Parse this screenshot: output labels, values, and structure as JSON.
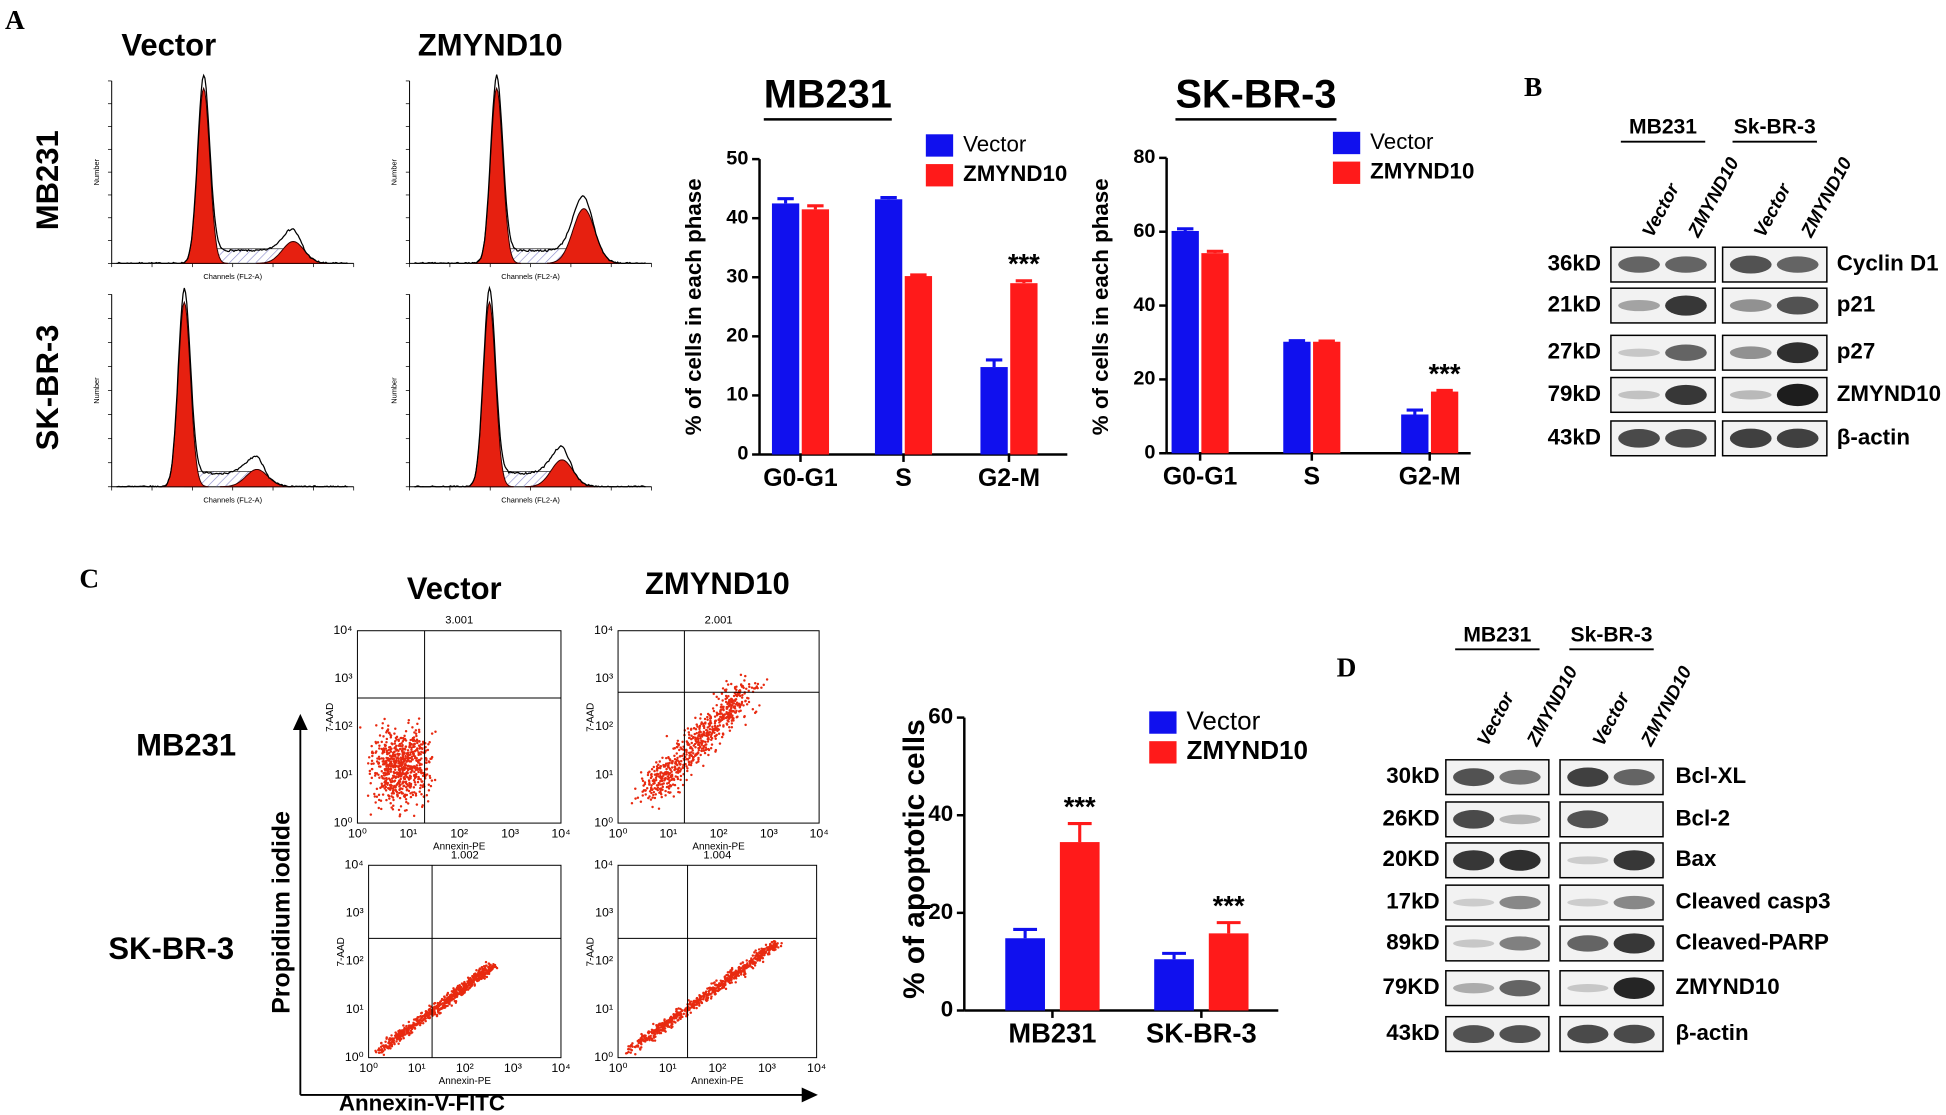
{
  "chart_data": [
    {
      "type": "bar",
      "title": "MB231",
      "y_label": "% of cells in each phase",
      "categories": [
        "G0-G1",
        "S",
        "G2-M"
      ],
      "series": [
        {
          "name": "Vector",
          "color": "#1010ee",
          "values": [
            42.5,
            43.2,
            14.8
          ],
          "errors": [
            0.8,
            0.3,
            1.2
          ]
        },
        {
          "name": "ZMYND10",
          "color": "#ff1a1a",
          "values": [
            41.5,
            30.2,
            29.0
          ],
          "errors": [
            0.6,
            0.2,
            0.4
          ]
        }
      ],
      "ylim": [
        0,
        50
      ],
      "yticks": [
        0,
        10,
        20,
        30,
        40,
        50
      ],
      "annotations": [
        {
          "text": "***",
          "category": "G2-M",
          "series": "ZMYND10"
        }
      ]
    },
    {
      "type": "bar",
      "title": "SK-BR-3",
      "y_label": "% of cells in each phase",
      "categories": [
        "G0-G1",
        "S",
        "G2-M"
      ],
      "series": [
        {
          "name": "Vector",
          "color": "#1010ee",
          "values": [
            60.2,
            30.2,
            10.5
          ],
          "errors": [
            0.6,
            0.3,
            1.2
          ]
        },
        {
          "name": "ZMYND10",
          "color": "#ff1a1a",
          "values": [
            54.2,
            30.2,
            16.7
          ],
          "errors": [
            0.5,
            0.2,
            0.3
          ]
        }
      ],
      "ylim": [
        0,
        80
      ],
      "yticks": [
        0,
        20,
        40,
        60,
        80
      ],
      "annotations": [
        {
          "text": "***",
          "category": "G2-M",
          "series": "ZMYND10"
        }
      ]
    },
    {
      "type": "bar",
      "y_label": "% of apoptotic cells",
      "categories": [
        "MB231",
        "SK-BR-3"
      ],
      "series": [
        {
          "name": "Vector",
          "color": "#1010ee",
          "values": [
            14.8,
            10.5
          ],
          "errors": [
            1.8,
            1.2
          ]
        },
        {
          "name": "ZMYND10",
          "color": "#ff1a1a",
          "values": [
            34.5,
            15.8
          ],
          "errors": [
            3.8,
            2.2
          ]
        }
      ],
      "ylim": [
        0,
        60
      ],
      "yticks": [
        0,
        20,
        40,
        60
      ],
      "annotations": [
        {
          "text": "***",
          "category": "MB231",
          "series": "ZMYND10"
        },
        {
          "text": "***",
          "category": "SK-BR-3",
          "series": "ZMYND10"
        }
      ]
    }
  ],
  "panel_a": {
    "label": "A",
    "columns": [
      "Vector",
      "ZMYND10"
    ],
    "rows": [
      "MB231",
      "SK-BR-3"
    ],
    "x_label": "Channels (FL2-A)",
    "y_label": "Number"
  },
  "panel_b": {
    "label": "B",
    "groups": [
      "MB231",
      "Sk-BR-3"
    ],
    "lanes": [
      "Vector",
      "ZMYND10",
      "Vector",
      "ZMYND10"
    ],
    "rows": [
      {
        "size": "36kD",
        "protein": "Cyclin D1"
      },
      {
        "size": "21kD",
        "protein": "p21"
      },
      {
        "size": "27kD",
        "protein": "p27"
      },
      {
        "size": "79kD",
        "protein": "ZMYND10"
      },
      {
        "size": "43kD",
        "protein": "β-actin"
      }
    ]
  },
  "panel_c": {
    "label": "C",
    "columns": [
      "Vector",
      "ZMYND10"
    ],
    "rows": [
      "MB231",
      "SK-BR-3"
    ],
    "plot_titles": [
      "3.001",
      "2.001",
      "1.002",
      "1.004"
    ],
    "x_label": "Annexin-PE",
    "y_label": "7-AAD",
    "ticks": [
      "10⁰",
      "10¹",
      "10²",
      "10³",
      "10⁴"
    ],
    "y_axis_title": "Propidium iodide",
    "x_axis_title": "Annexin-V-FITC"
  },
  "panel_d": {
    "label": "D",
    "groups": [
      "MB231",
      "Sk-BR-3"
    ],
    "lanes": [
      "Vector",
      "ZMYND10",
      "Vector",
      "ZMYND10"
    ],
    "rows": [
      {
        "size": "30kD",
        "protein": "Bcl-XL"
      },
      {
        "size": "26KD",
        "protein": "Bcl-2"
      },
      {
        "size": "20KD",
        "protein": "Bax"
      },
      {
        "size": "17kD",
        "protein": "Cleaved casp3"
      },
      {
        "size": "89kD",
        "protein": "Cleaved-PARP"
      },
      {
        "size": "79KD",
        "protein": "ZMYND10"
      },
      {
        "size": "43kD",
        "protein": "β-actin"
      }
    ]
  }
}
